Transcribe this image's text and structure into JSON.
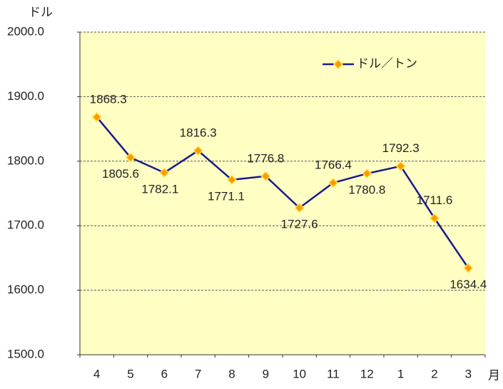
{
  "chart_data": {
    "type": "line",
    "y_label": "ドル",
    "x_label": "月",
    "categories": [
      "4",
      "5",
      "6",
      "7",
      "8",
      "9",
      "10",
      "11",
      "12",
      "1",
      "2",
      "3"
    ],
    "series": [
      {
        "name": "ドル／トン",
        "color": "#1a1a8c",
        "marker_color": "#ff9a00",
        "values": [
          1868.3,
          1805.6,
          1782.1,
          1816.3,
          1771.1,
          1776.8,
          1727.6,
          1766.4,
          1780.8,
          1792.3,
          1711.6,
          1634.4
        ]
      }
    ],
    "ylim": [
      1500,
      2000
    ],
    "yticks": [
      {
        "value": 1500,
        "label": "1500.0"
      },
      {
        "value": 1600,
        "label": "1600.0"
      },
      {
        "value": 1700,
        "label": "1700.0"
      },
      {
        "value": 1800,
        "label": "1800.0"
      },
      {
        "value": 1900,
        "label": "1900.0"
      },
      {
        "value": 2000,
        "label": "2000.0"
      }
    ],
    "grid": true,
    "background": "#ffffc4",
    "legend": "upper right"
  }
}
